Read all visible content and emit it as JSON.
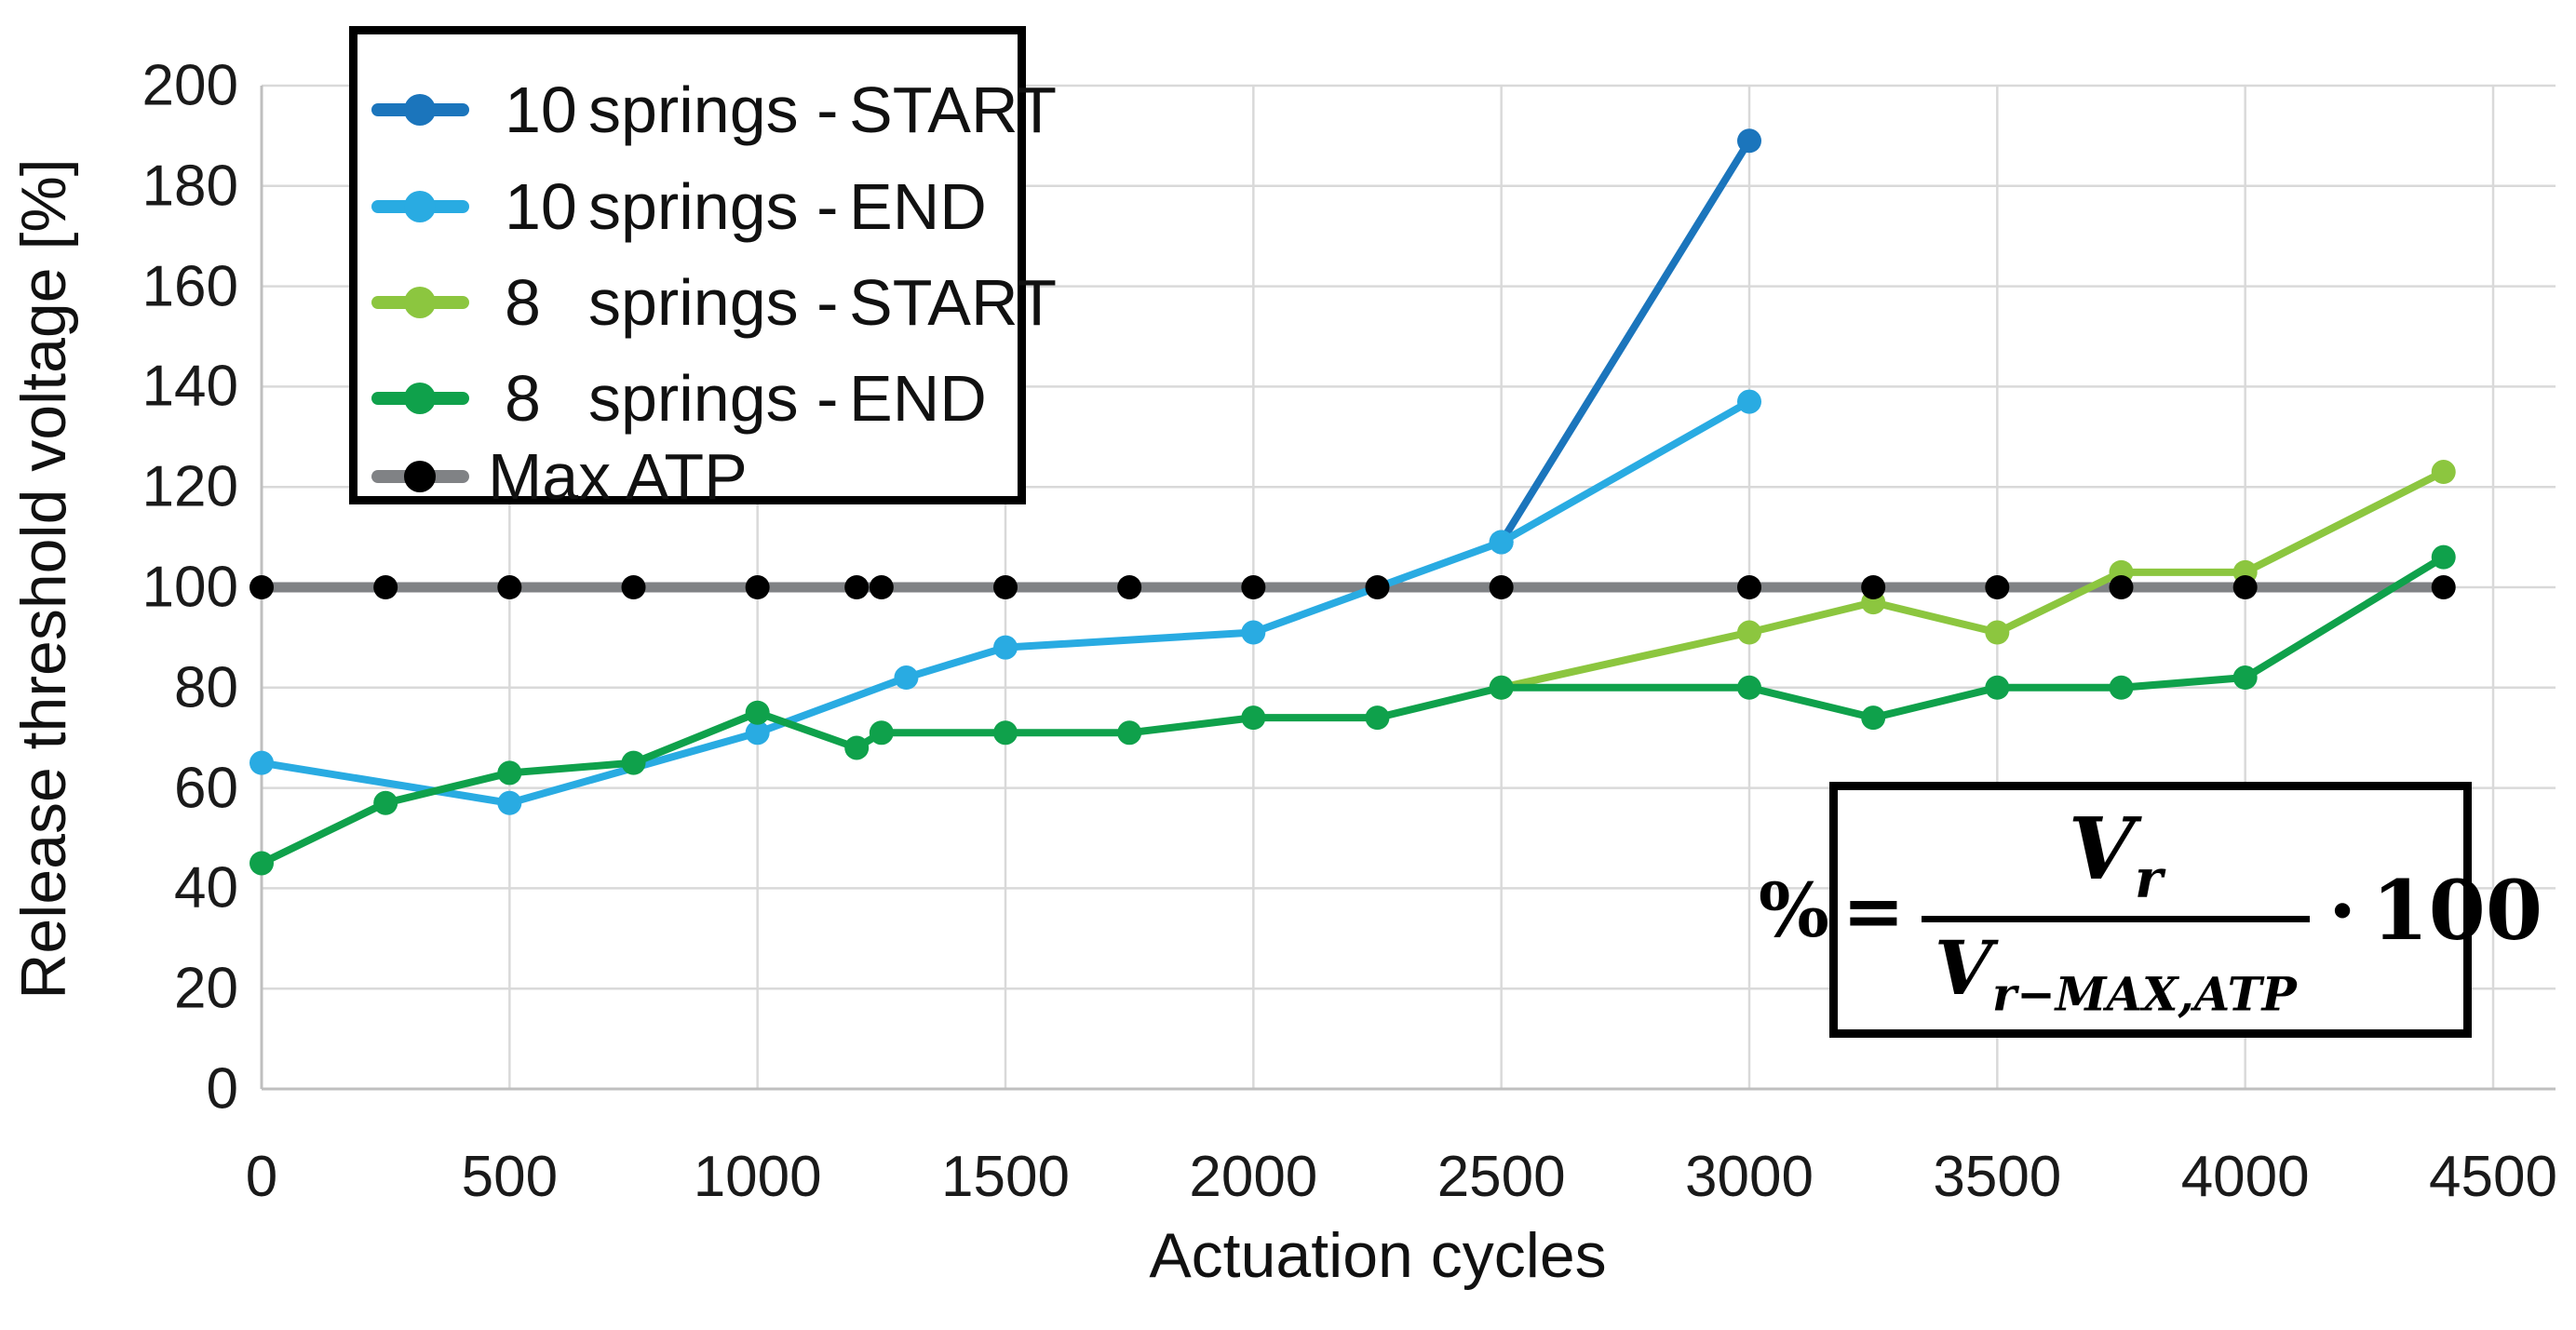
{
  "chart_data": {
    "type": "line",
    "title": "",
    "xlabel": "Actuation cycles",
    "ylabel": "Release threshold voltage [%]",
    "xlim": [
      0,
      4500
    ],
    "ylim": [
      0,
      200
    ],
    "xticks": [
      0,
      500,
      1000,
      1500,
      2000,
      2500,
      3000,
      3500,
      4000,
      4500
    ],
    "yticks": [
      0,
      20,
      40,
      60,
      80,
      100,
      120,
      140,
      160,
      180,
      200
    ],
    "grid": true,
    "legend_position": "top-left",
    "series": [
      {
        "name": "10 springs - START",
        "color": "#1B75BC",
        "points": [
          [
            2500,
            109
          ],
          [
            3000,
            189
          ]
        ]
      },
      {
        "name": "10 springs - END",
        "color": "#29ABE2",
        "points": [
          [
            0,
            65
          ],
          [
            500,
            57
          ],
          [
            1000,
            71
          ],
          [
            1300,
            82
          ],
          [
            1500,
            88
          ],
          [
            2000,
            91
          ],
          [
            2500,
            109
          ],
          [
            3000,
            137
          ]
        ]
      },
      {
        "name": "8 springs - START",
        "color": "#8CC63F",
        "points": [
          [
            2500,
            80
          ],
          [
            3000,
            91
          ],
          [
            3250,
            97
          ],
          [
            3500,
            91
          ],
          [
            3750,
            103
          ],
          [
            4000,
            103
          ],
          [
            4400,
            123
          ]
        ]
      },
      {
        "name": "8 springs - END",
        "color": "#0FA14B",
        "points": [
          [
            0,
            45
          ],
          [
            250,
            57
          ],
          [
            500,
            63
          ],
          [
            750,
            65
          ],
          [
            1000,
            75
          ],
          [
            1200,
            68
          ],
          [
            1250,
            71
          ],
          [
            1500,
            71
          ],
          [
            1750,
            71
          ],
          [
            2000,
            74
          ],
          [
            2250,
            74
          ],
          [
            2500,
            80
          ],
          [
            3000,
            80
          ],
          [
            3250,
            74
          ],
          [
            3500,
            80
          ],
          [
            3750,
            80
          ],
          [
            4000,
            82
          ],
          [
            4400,
            106
          ]
        ]
      },
      {
        "name": "Max ATP",
        "color": "#808285",
        "marker_color": "#000000",
        "points": [
          [
            0,
            100
          ],
          [
            250,
            100
          ],
          [
            500,
            100
          ],
          [
            750,
            100
          ],
          [
            1000,
            100
          ],
          [
            1200,
            100
          ],
          [
            1250,
            100
          ],
          [
            1500,
            100
          ],
          [
            1750,
            100
          ],
          [
            2000,
            100
          ],
          [
            2250,
            100
          ],
          [
            2500,
            100
          ],
          [
            3000,
            100
          ],
          [
            3250,
            100
          ],
          [
            3500,
            100
          ],
          [
            3750,
            100
          ],
          [
            4000,
            100
          ],
          [
            4400,
            100
          ]
        ]
      }
    ]
  },
  "legend": {
    "items": [
      {
        "num": "10",
        "mid": "springs -",
        "suffix": "START",
        "color": "#1B75BC",
        "dot": "#1B75BC"
      },
      {
        "num": "10",
        "mid": "springs -",
        "suffix": "END",
        "color": "#29ABE2",
        "dot": "#29ABE2"
      },
      {
        "num": "8",
        "mid": "springs -",
        "suffix": "START",
        "color": "#8CC63F",
        "dot": "#8CC63F"
      },
      {
        "num": "8",
        "mid": "springs -",
        "suffix": "END",
        "color": "#0FA14B",
        "dot": "#0FA14B"
      },
      {
        "label": "Max ATP",
        "color": "#808285",
        "dot": "#000000"
      }
    ]
  },
  "formula": {
    "lhs": "%",
    "eq": "=",
    "numerator_main": "V",
    "numerator_sub": "r",
    "denominator_main": "V",
    "denominator_sub": "r−MAX,ATP",
    "dot": "·",
    "factor": "100"
  },
  "colors": {
    "grid": "#D9D9D9",
    "axis": "#BFBFBF",
    "text": "#1A1A1A",
    "background": "#FFFFFF"
  }
}
